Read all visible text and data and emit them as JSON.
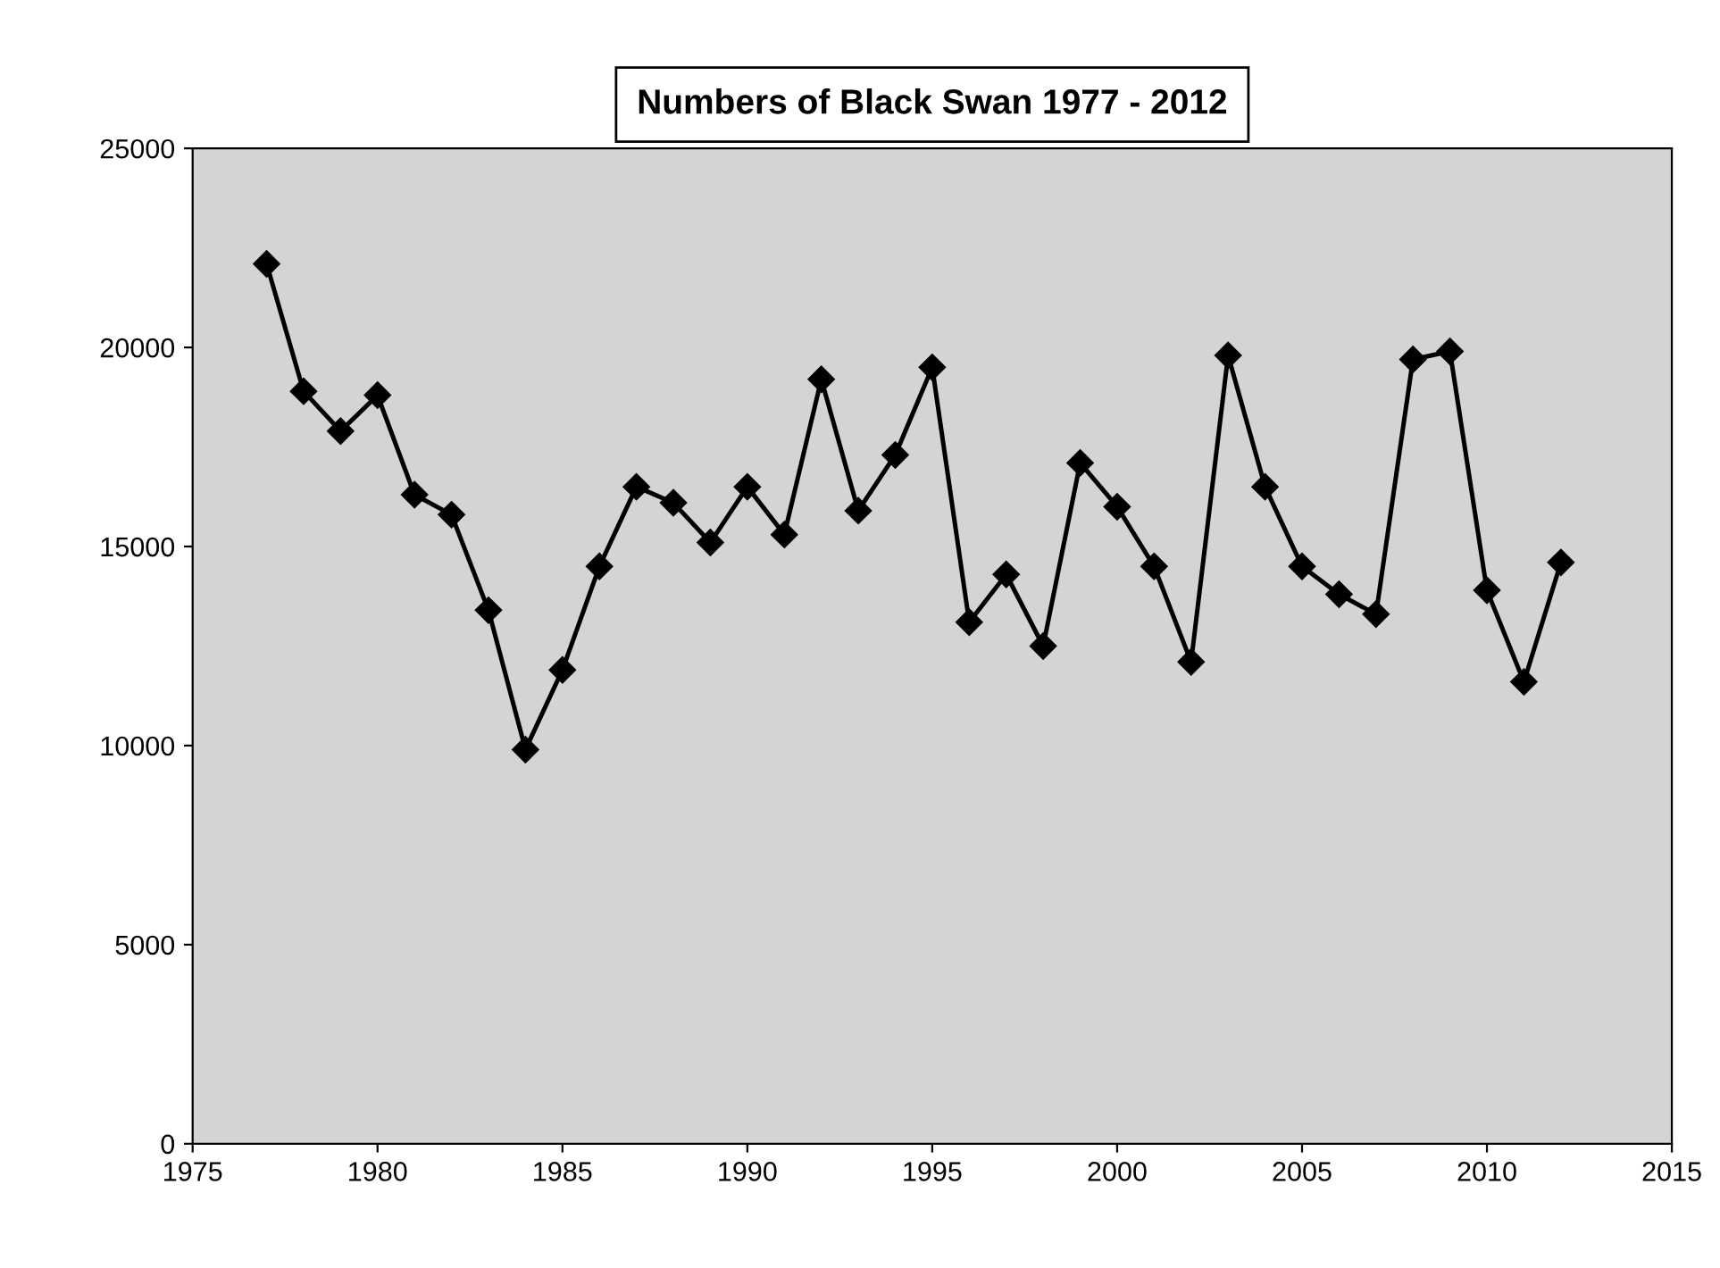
{
  "chart_data": {
    "type": "line",
    "title": "Numbers of Black Swan 1977 - 2012",
    "x": [
      1977,
      1978,
      1979,
      1980,
      1981,
      1982,
      1983,
      1984,
      1985,
      1986,
      1987,
      1988,
      1989,
      1990,
      1991,
      1992,
      1993,
      1994,
      1995,
      1996,
      1997,
      1998,
      1999,
      2000,
      2001,
      2002,
      2003,
      2004,
      2005,
      2006,
      2007,
      2008,
      2009,
      2010,
      2011,
      2012
    ],
    "series": [
      {
        "color": "#000000",
        "values": [
          22100,
          18900,
          17900,
          18800,
          16300,
          15800,
          13400,
          9900,
          11900,
          14500,
          16500,
          16100,
          15100,
          16500,
          15300,
          19200,
          15900,
          17300,
          19500,
          13100,
          14300,
          12500,
          17100,
          16000,
          14500,
          12100,
          19800,
          16500,
          14500,
          13800,
          13300,
          19700,
          19900,
          13900,
          11600,
          14600
        ]
      }
    ],
    "xlim": [
      1975,
      2015
    ],
    "xticks": [
      1975,
      1980,
      1985,
      1990,
      1995,
      2000,
      2005,
      2010,
      2015
    ],
    "ylim": [
      0,
      25000
    ],
    "yticks": [
      0,
      5000,
      10000,
      15000,
      20000,
      25000
    ],
    "marker": "diamond",
    "line_style": "solid",
    "grid": false,
    "legend": false
  }
}
